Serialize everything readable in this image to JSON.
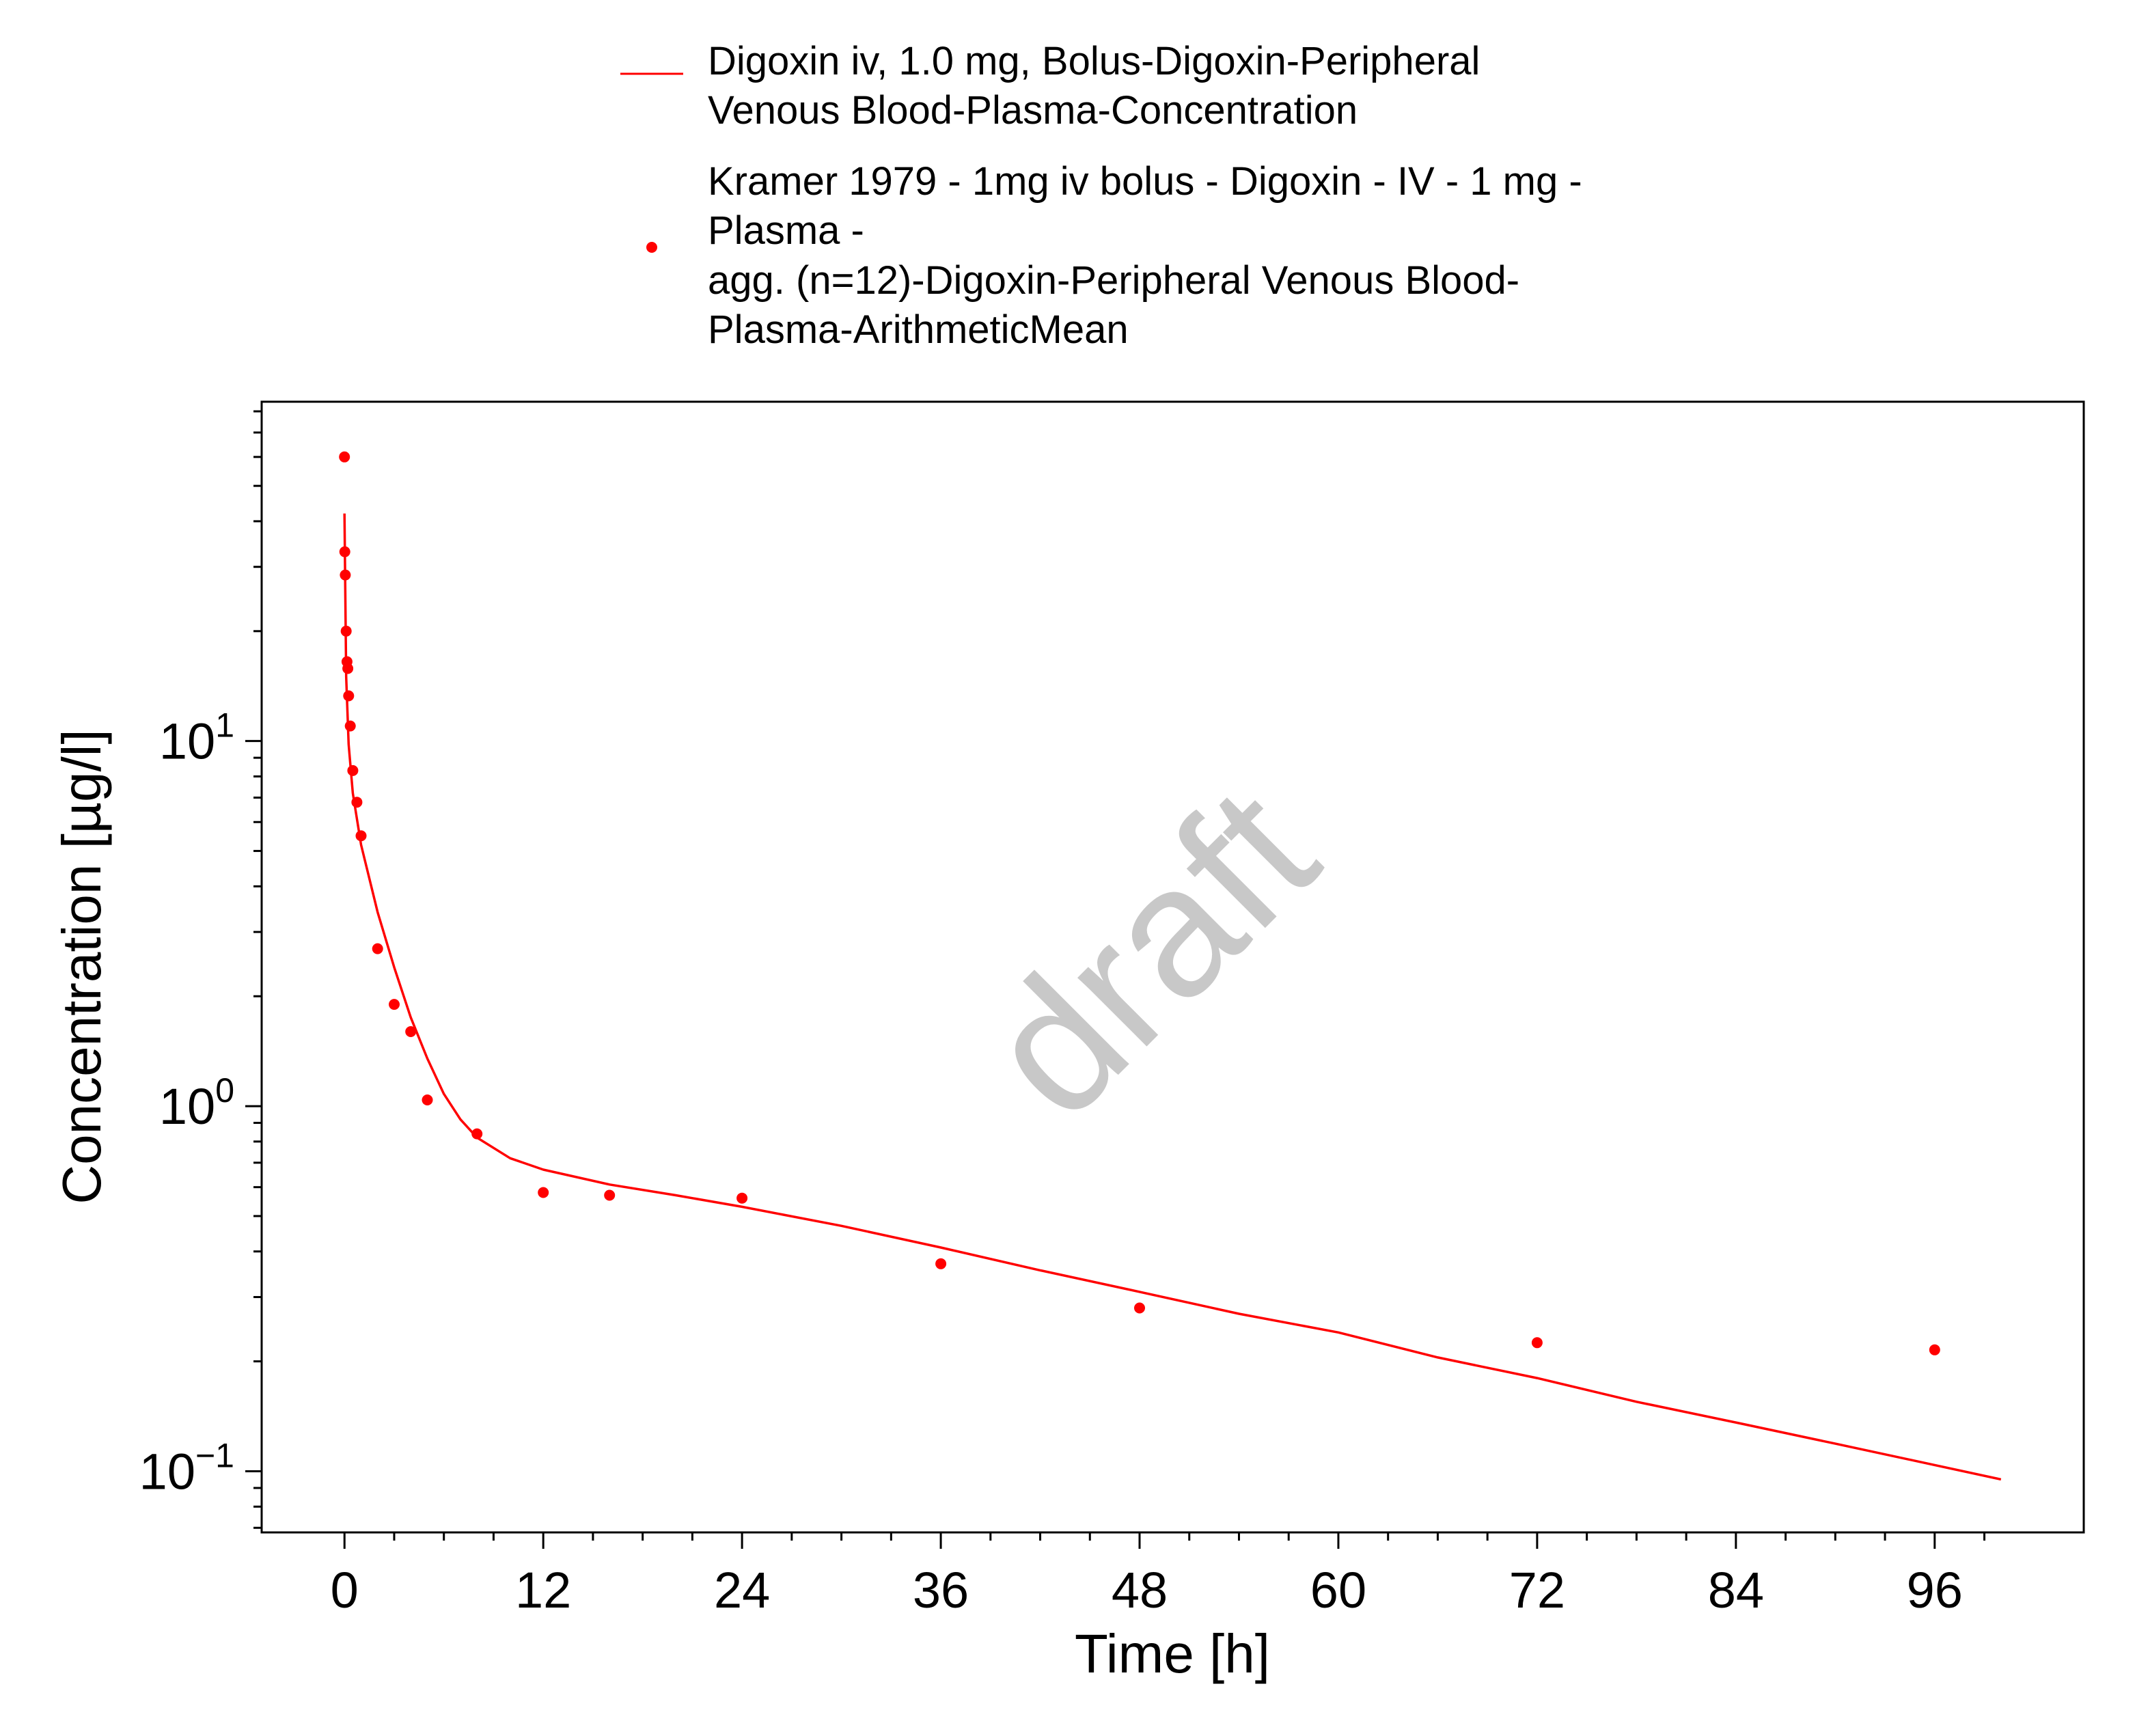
{
  "chart_data": {
    "type": "line",
    "xlabel": "Time [h]",
    "ylabel": "Concentration [µg/l]",
    "y_scale": "log",
    "xlim": [
      -5,
      105
    ],
    "ylim": [
      0.068,
      85
    ],
    "x_ticks": [
      "0",
      "12",
      "24",
      "36",
      "48",
      "60",
      "72",
      "84",
      "96"
    ],
    "y_ticks": [
      {
        "value": 10,
        "base": "10",
        "exponent": "1"
      },
      {
        "value": 1,
        "base": "10",
        "exponent": "0"
      },
      {
        "value": 0.1,
        "base": "10",
        "exponent": "−1"
      }
    ],
    "grid": false,
    "legend_position": "top",
    "watermark": "draft",
    "series": [
      {
        "name_lines": [
          "Digoxin iv, 1.0 mg, Bolus-Digoxin-Peripheral",
          "Venous Blood-Plasma-Concentration"
        ],
        "kind": "line",
        "color": "#ff0000",
        "x": [
          0,
          0.1,
          0.25,
          0.5,
          1,
          2,
          3,
          4,
          5,
          6,
          7,
          8,
          10,
          12,
          16,
          20,
          24,
          30,
          36,
          42,
          48,
          54,
          60,
          66,
          72,
          78,
          84,
          90,
          96,
          100
        ],
        "y": [
          42,
          15,
          9.8,
          7.2,
          5.2,
          3.4,
          2.4,
          1.75,
          1.35,
          1.08,
          0.92,
          0.82,
          0.72,
          0.67,
          0.61,
          0.57,
          0.53,
          0.47,
          0.41,
          0.355,
          0.31,
          0.27,
          0.24,
          0.205,
          0.18,
          0.155,
          0.136,
          0.119,
          0.104,
          0.095
        ]
      },
      {
        "name_lines": [
          "Kramer 1979 - 1mg iv bolus - Digoxin - IV - 1 mg -",
          "Plasma -",
          "agg. (n=12)-Digoxin-Peripheral Venous Blood-",
          "Plasma-ArithmeticMean"
        ],
        "kind": "scatter",
        "color": "#ff0000",
        "x": [
          0,
          0.02,
          0.05,
          0.1,
          0.15,
          0.2,
          0.25,
          0.35,
          0.5,
          0.75,
          1,
          2,
          3,
          4,
          5,
          8,
          12,
          16,
          24,
          36,
          48,
          72,
          96
        ],
        "y": [
          60,
          33,
          28.5,
          20,
          16.5,
          15.8,
          13.3,
          11,
          8.3,
          6.8,
          5.5,
          2.7,
          1.9,
          1.6,
          1.04,
          0.84,
          0.58,
          0.57,
          0.56,
          0.37,
          0.28,
          0.225,
          0.215
        ]
      }
    ]
  }
}
